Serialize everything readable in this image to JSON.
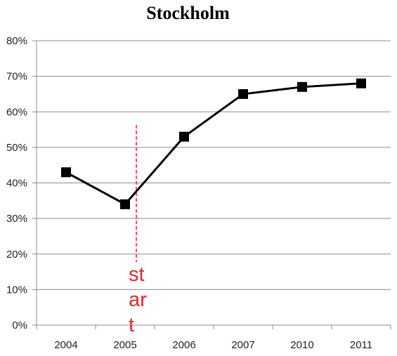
{
  "chart_data": {
    "type": "line",
    "title": "Stockholm",
    "categories": [
      "2004",
      "2005",
      "2006",
      "2007",
      "2010",
      "2011"
    ],
    "series": [
      {
        "values": [
          0.43,
          0.34,
          0.53,
          0.65,
          0.67,
          0.68
        ],
        "color": "#000000",
        "marker": "square"
      }
    ],
    "ylim": [
      0,
      0.8
    ],
    "y_ticks": [
      "0%",
      "10%",
      "20%",
      "30%",
      "40%",
      "50%",
      "60%",
      "70%",
      "80%"
    ],
    "grid": true,
    "legend": "none",
    "annotation": {
      "lines": [
        "st",
        "ar",
        "t"
      ],
      "after_category": "2005",
      "color": "#e8262a"
    }
  }
}
